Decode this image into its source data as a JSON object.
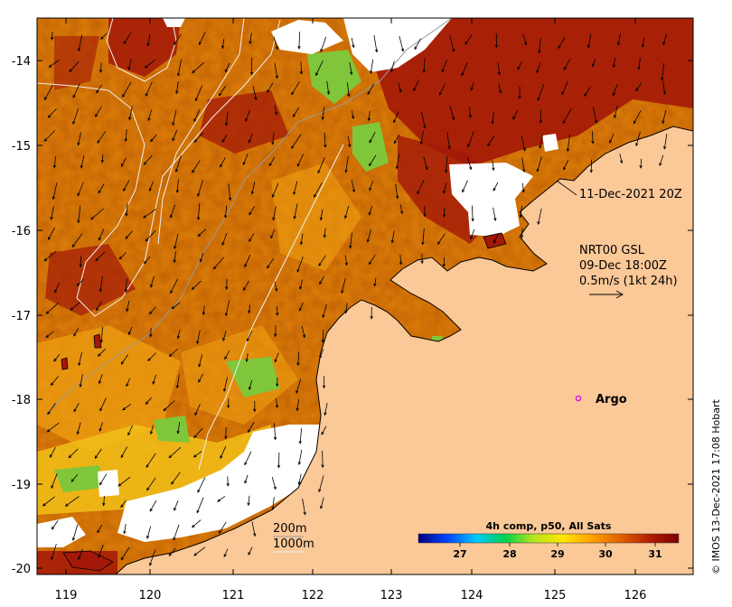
{
  "map": {
    "lon_ticks": [
      "119",
      "120",
      "121",
      "122",
      "123",
      "124",
      "125",
      "126"
    ],
    "lat_ticks": [
      "-14",
      "-15",
      "-16",
      "-17",
      "-18",
      "-19",
      "-20"
    ]
  },
  "annotations": {
    "timestamp": "11-Dec-2021 20Z",
    "current_product": "NRT00 GSL",
    "current_time": "09-Dec 18:00Z",
    "vector_scale": "0.5m/s (1kt 24h)",
    "argo_label": "Argo",
    "isobath_200": "200m",
    "isobath_1000": "1000m"
  },
  "colorbar": {
    "title": "4h comp, p50, All Sats",
    "ticks": [
      "27",
      "28",
      "29",
      "30",
      "31"
    ],
    "colors": [
      "#00007f",
      "#0044ff",
      "#00c8ff",
      "#00d24a",
      "#b9e61e",
      "#ffe600",
      "#ffa000",
      "#e06000",
      "#b41e00",
      "#7a0000"
    ]
  },
  "credit": "© IMOS 13-Dec-2021 17:08 Hobart",
  "colors": {
    "land": "#fbc898",
    "sst_warm": "#d87a08",
    "sst_hot": "#a31808",
    "sst_mid": "#ee9f12",
    "sst_cool": "#f2c019",
    "sst_green": "#80c63a",
    "cloud": "#ffffff",
    "argo": "#e010e0"
  }
}
